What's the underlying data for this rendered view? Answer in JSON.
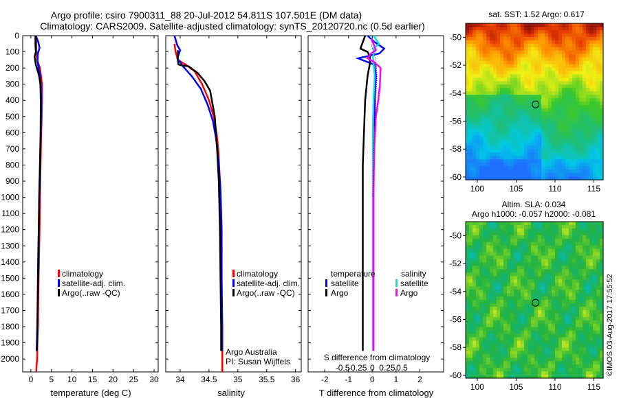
{
  "title_line1": "Argo profile: csiro 7900311_88 20-Jul-2012 54.811S 107.501E (DM data)",
  "title_line2": "Climatology: CARS2009. Satellite-adjusted climatology: synTS_20120720.nc (0.5d earlier)",
  "credit_lines": [
    "Argo Australia",
    "PI: Susan Wijffels"
  ],
  "copyright": "©IMOS 03-Aug-2017 17:55:52",
  "colors": {
    "climatology": "#ff0000",
    "satellite": "#0000ff",
    "argo": "#000000",
    "sal_satellite": "#00e5ee",
    "sal_argo": "#ff00ff"
  },
  "chart_data": [
    {
      "id": "temperature",
      "type": "line",
      "xlabel": "temperature (deg C)",
      "ylabel": "",
      "xlim": [
        -2,
        31
      ],
      "ylim": [
        2080,
        0
      ],
      "xticks": [
        0,
        5,
        10,
        15,
        20,
        25,
        30
      ],
      "yticks": [
        0,
        100,
        200,
        300,
        400,
        500,
        600,
        700,
        800,
        900,
        1000,
        1100,
        1200,
        1300,
        1400,
        1500,
        1600,
        1700,
        1800,
        1900,
        2000
      ],
      "legend": [
        "climatology",
        "satellite-adj. clim.",
        "Argo(..raw -QC)"
      ],
      "series": [
        {
          "name": "climatology",
          "color": "#ff0000",
          "x": [
            1.3,
            1.3,
            1.5,
            2.2,
            2.7,
            2.7,
            2.6,
            2.5,
            2.35,
            2.2,
            2.1,
            1.95,
            1.8,
            1.7,
            1.6,
            1.5,
            1.35,
            1.3
          ],
          "y": [
            0,
            80,
            150,
            200,
            300,
            400,
            530,
            600,
            800,
            1000,
            1200,
            1400,
            1600,
            1800,
            1900,
            2000,
            2050,
            2080
          ]
        },
        {
          "name": "satellite-adj. clim.",
          "color": "#0000ff",
          "x": [
            1.2,
            1.8,
            2.1,
            1.7,
            1.6,
            2.1,
            2.4,
            2.5,
            2.4,
            2.2,
            2.05,
            1.9,
            1.75,
            1.65,
            1.55,
            1.45,
            1.4
          ],
          "y": [
            0,
            40,
            75,
            110,
            160,
            230,
            300,
            400,
            600,
            800,
            1000,
            1200,
            1400,
            1600,
            1800,
            1900,
            1950
          ]
        },
        {
          "name": "Argo(..raw -QC)",
          "color": "#000000",
          "x": [
            1.1,
            1.1,
            1.2,
            0.9,
            1.2,
            2.0,
            2.3,
            2.4,
            2.35,
            2.2,
            2.0,
            1.9,
            1.8,
            1.7,
            1.6,
            1.5,
            1.4
          ],
          "y": [
            0,
            60,
            100,
            130,
            180,
            250,
            300,
            400,
            600,
            800,
            1000,
            1200,
            1400,
            1600,
            1800,
            1900,
            1950
          ]
        }
      ]
    },
    {
      "id": "salinity",
      "type": "line",
      "xlabel": "salinity",
      "ylabel": "",
      "xlim": [
        33.75,
        36.1
      ],
      "ylim": [
        2080,
        0
      ],
      "xticks": [
        34,
        34.5,
        35,
        35.5,
        36
      ],
      "xticklabels": [
        "34",
        "34.5",
        "35",
        "35.5",
        "36"
      ],
      "legend": [
        "climatology",
        "satellite-adj. clim.",
        "Argo(..raw -QC)"
      ],
      "series": [
        {
          "name": "climatology",
          "color": "#ff0000",
          "x": [
            33.9,
            33.92,
            33.96,
            34.1,
            34.25,
            34.38,
            34.5,
            34.58,
            34.63,
            34.66,
            34.69,
            34.71,
            34.72,
            34.72,
            34.73,
            34.73
          ],
          "y": [
            50,
            100,
            150,
            180,
            220,
            300,
            400,
            500,
            600,
            700,
            900,
            1100,
            1300,
            1600,
            1900,
            2080
          ]
        },
        {
          "name": "satellite-adj. clim.",
          "color": "#0000ff",
          "x": [
            33.9,
            33.95,
            34.0,
            33.95,
            34.05,
            34.2,
            34.36,
            34.48,
            34.57,
            34.62,
            34.66,
            34.7,
            34.72,
            34.72,
            34.73,
            34.73
          ],
          "y": [
            0,
            60,
            90,
            140,
            190,
            250,
            330,
            430,
            530,
            630,
            750,
            950,
            1200,
            1500,
            1800,
            1950
          ]
        },
        {
          "name": "Argo(..raw -QC)",
          "color": "#000000",
          "x": [
            33.96,
            33.96,
            33.97,
            34.0,
            34.15,
            34.3,
            34.42,
            34.52,
            34.6,
            34.64,
            34.67,
            34.69,
            34.7,
            34.71,
            34.71
          ],
          "y": [
            90,
            150,
            178,
            182,
            190,
            230,
            280,
            340,
            500,
            700,
            900,
            1200,
            1500,
            1800,
            1950
          ]
        }
      ]
    },
    {
      "id": "difference",
      "type": "line",
      "xlabel": "T difference from climatology",
      "top_axis_label": "S difference from climatology",
      "xlim": [
        -2.7,
        3.0
      ],
      "ylim": [
        2080,
        0
      ],
      "xticks": [
        -2,
        -1,
        0,
        1,
        2
      ],
      "top_xticks": [
        -0.5,
        -0.25,
        0,
        0.25,
        0.5
      ],
      "top_xticklabels": [
        "-0.5",
        "-0.25",
        "0",
        "0.25",
        "0.5"
      ],
      "legend_groups": [
        {
          "title": "temperature",
          "entries": [
            "satellite",
            "Argo"
          ]
        },
        {
          "title": "salinity",
          "entries": [
            "satellite",
            "Argo"
          ]
        }
      ],
      "series": [
        {
          "name": "temperature satellite",
          "color": "#0000ff",
          "x": [
            -0.2,
            0.1,
            0.5,
            0.3,
            -0.6,
            0.1,
            0.15,
            0.1,
            0.1,
            0.05,
            0.05,
            0.05,
            0.05,
            0.05
          ],
          "y": [
            0,
            40,
            80,
            110,
            140,
            180,
            250,
            400,
            600,
            800,
            1000,
            1300,
            1600,
            1950
          ]
        },
        {
          "name": "temperature Argo",
          "color": "#000000",
          "x": [
            -0.3,
            -0.4,
            -0.5,
            -0.2,
            -0.1,
            -0.1,
            -0.2,
            -0.3,
            -0.35,
            -0.4,
            -0.4,
            -0.4,
            -0.4,
            -0.4
          ],
          "y": [
            0,
            40,
            80,
            100,
            130,
            170,
            250,
            400,
            600,
            800,
            1000,
            1300,
            1600,
            1950
          ]
        },
        {
          "name": "salinity satellite",
          "color": "#00e5ee",
          "x": [
            0.05,
            0.28,
            0.05,
            0.1,
            0.02,
            0.05,
            0.1,
            0.05,
            0.02,
            0.02,
            0.02,
            0.02,
            0.02,
            0.02
          ],
          "y": [
            0,
            50,
            80,
            100,
            130,
            170,
            250,
            400,
            600,
            800,
            1000,
            1300,
            1600,
            1950
          ]
        },
        {
          "name": "salinity Argo",
          "color": "#ff00ff",
          "x": [
            -0.05,
            0.05,
            0.15,
            -0.05,
            -0.2,
            0.05,
            0.35,
            0.32,
            0.25,
            0.15,
            0.08,
            0.05,
            0.05,
            0.05,
            0.05
          ],
          "y": [
            20,
            50,
            90,
            110,
            140,
            160,
            200,
            300,
            400,
            500,
            700,
            1000,
            1300,
            1600,
            1950
          ]
        },
        {
          "name": "dotted",
          "color": "#000000",
          "x": [
            -0.05,
            0.05,
            0.15,
            0.2,
            0.15,
            0.08,
            0.05,
            0.02
          ],
          "y": [
            50,
            100,
            150,
            250,
            400,
            600,
            800,
            1000
          ]
        }
      ]
    },
    {
      "id": "sst_map",
      "type": "heatmap",
      "title": "sat. SST: 1.52 Argo: 0.617",
      "xlim": [
        98.5,
        116.2
      ],
      "ylim": [
        -60.2,
        -49
      ],
      "xticks": [
        100,
        105,
        110,
        115
      ],
      "yticks": [
        -50,
        -52,
        -54,
        -56,
        -58,
        -60
      ],
      "marker": {
        "lon": 107.5,
        "lat": -54.8
      }
    },
    {
      "id": "sla_map",
      "type": "heatmap",
      "title_line1": "Altim. SLA: 0.034",
      "title_line2": "Argo h1000: -0.057 h2000: -0.081",
      "xlim": [
        98.5,
        116.2
      ],
      "ylim": [
        -60.2,
        -49
      ],
      "xticks": [
        100,
        105,
        110,
        115
      ],
      "yticks": [
        -50,
        -52,
        -54,
        -56,
        -58,
        -60
      ],
      "marker": {
        "lon": 107.5,
        "lat": -54.8
      }
    }
  ]
}
